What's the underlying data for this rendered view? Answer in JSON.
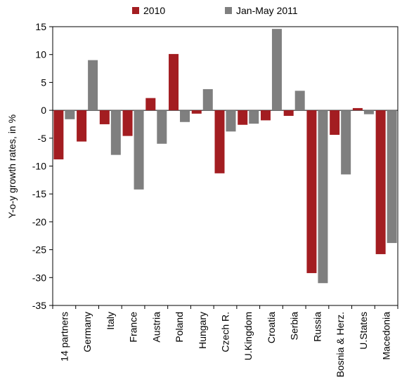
{
  "chart_data": {
    "type": "bar",
    "title": "",
    "xlabel": "",
    "ylabel": "Y-o-y growth rates, in %",
    "ylim": [
      -35,
      15
    ],
    "yticks": [
      15,
      10,
      5,
      0,
      -5,
      -10,
      -15,
      -20,
      -25,
      -30,
      -35
    ],
    "grid": false,
    "legend_position": "top",
    "categories": [
      "14 partners",
      "Germany",
      "Italy",
      "France",
      "Austria",
      "Poland",
      "Hungary",
      "Czech R.",
      "U.Kingdom",
      "Croatia",
      "Serbia",
      "Russia",
      "Bosnia & Herz.",
      "U.States",
      "Macedonia"
    ],
    "series": [
      {
        "name": "2010",
        "color": "#a31d21",
        "values": [
          -8.8,
          -5.6,
          -2.5,
          -4.6,
          2.2,
          10.1,
          -0.6,
          -11.3,
          -2.6,
          -1.8,
          -1.0,
          -29.2,
          -4.4,
          0.4,
          -25.8
        ]
      },
      {
        "name": "Jan-May 2011",
        "color": "#7f7f7f",
        "values": [
          -1.6,
          9.0,
          -8.0,
          -14.2,
          -6.0,
          -2.1,
          3.8,
          -3.8,
          -2.4,
          14.6,
          3.5,
          -31.0,
          -11.5,
          -0.7,
          -23.8
        ]
      }
    ]
  }
}
